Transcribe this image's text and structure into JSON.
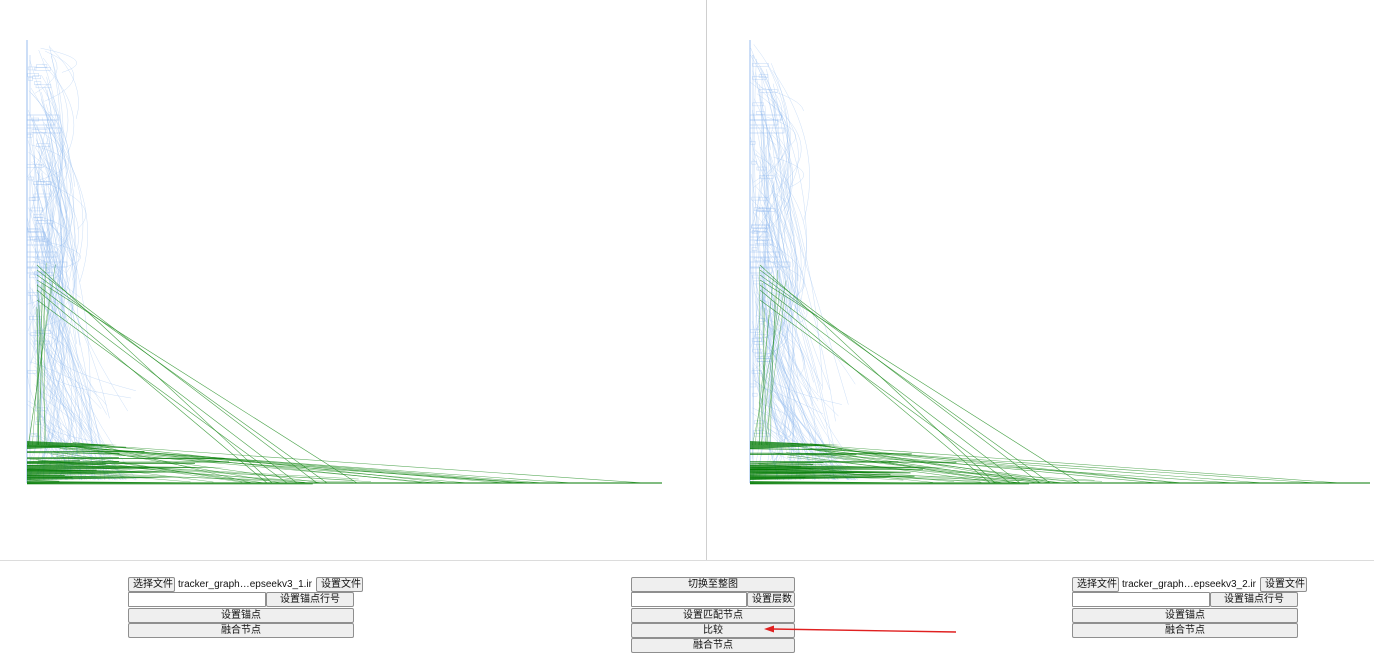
{
  "left_panel": {
    "choose_file_label": "选择文件",
    "file_name": "tracker_graph…epseekv3_1.ir",
    "set_file_label": "设置文件",
    "anchor_line_input_value": "",
    "set_anchor_line_label": "设置锚点行号",
    "set_anchor_label": "设置锚点",
    "merge_nodes_label": "融合节点"
  },
  "center_panel": {
    "switch_full_graph_label": "切换至整图",
    "level_input_value": "",
    "set_level_label": "设置层数",
    "set_match_node_label": "设置匹配节点",
    "compare_label": "比较",
    "merge_nodes_label": "融合节点"
  },
  "right_panel": {
    "choose_file_label": "选择文件",
    "file_name": "tracker_graph…epseekv3_2.ir",
    "set_file_label": "设置文件",
    "anchor_line_input_value": "",
    "set_anchor_line_label": "设置锚点行号",
    "set_anchor_label": "设置锚点",
    "merge_nodes_label": "融合节点"
  },
  "colors": {
    "edge_blue": "#8fb8ee",
    "edge_green": "#1a8a1a",
    "node_green": "#007a00",
    "annotation_arrow": "#e02020"
  }
}
